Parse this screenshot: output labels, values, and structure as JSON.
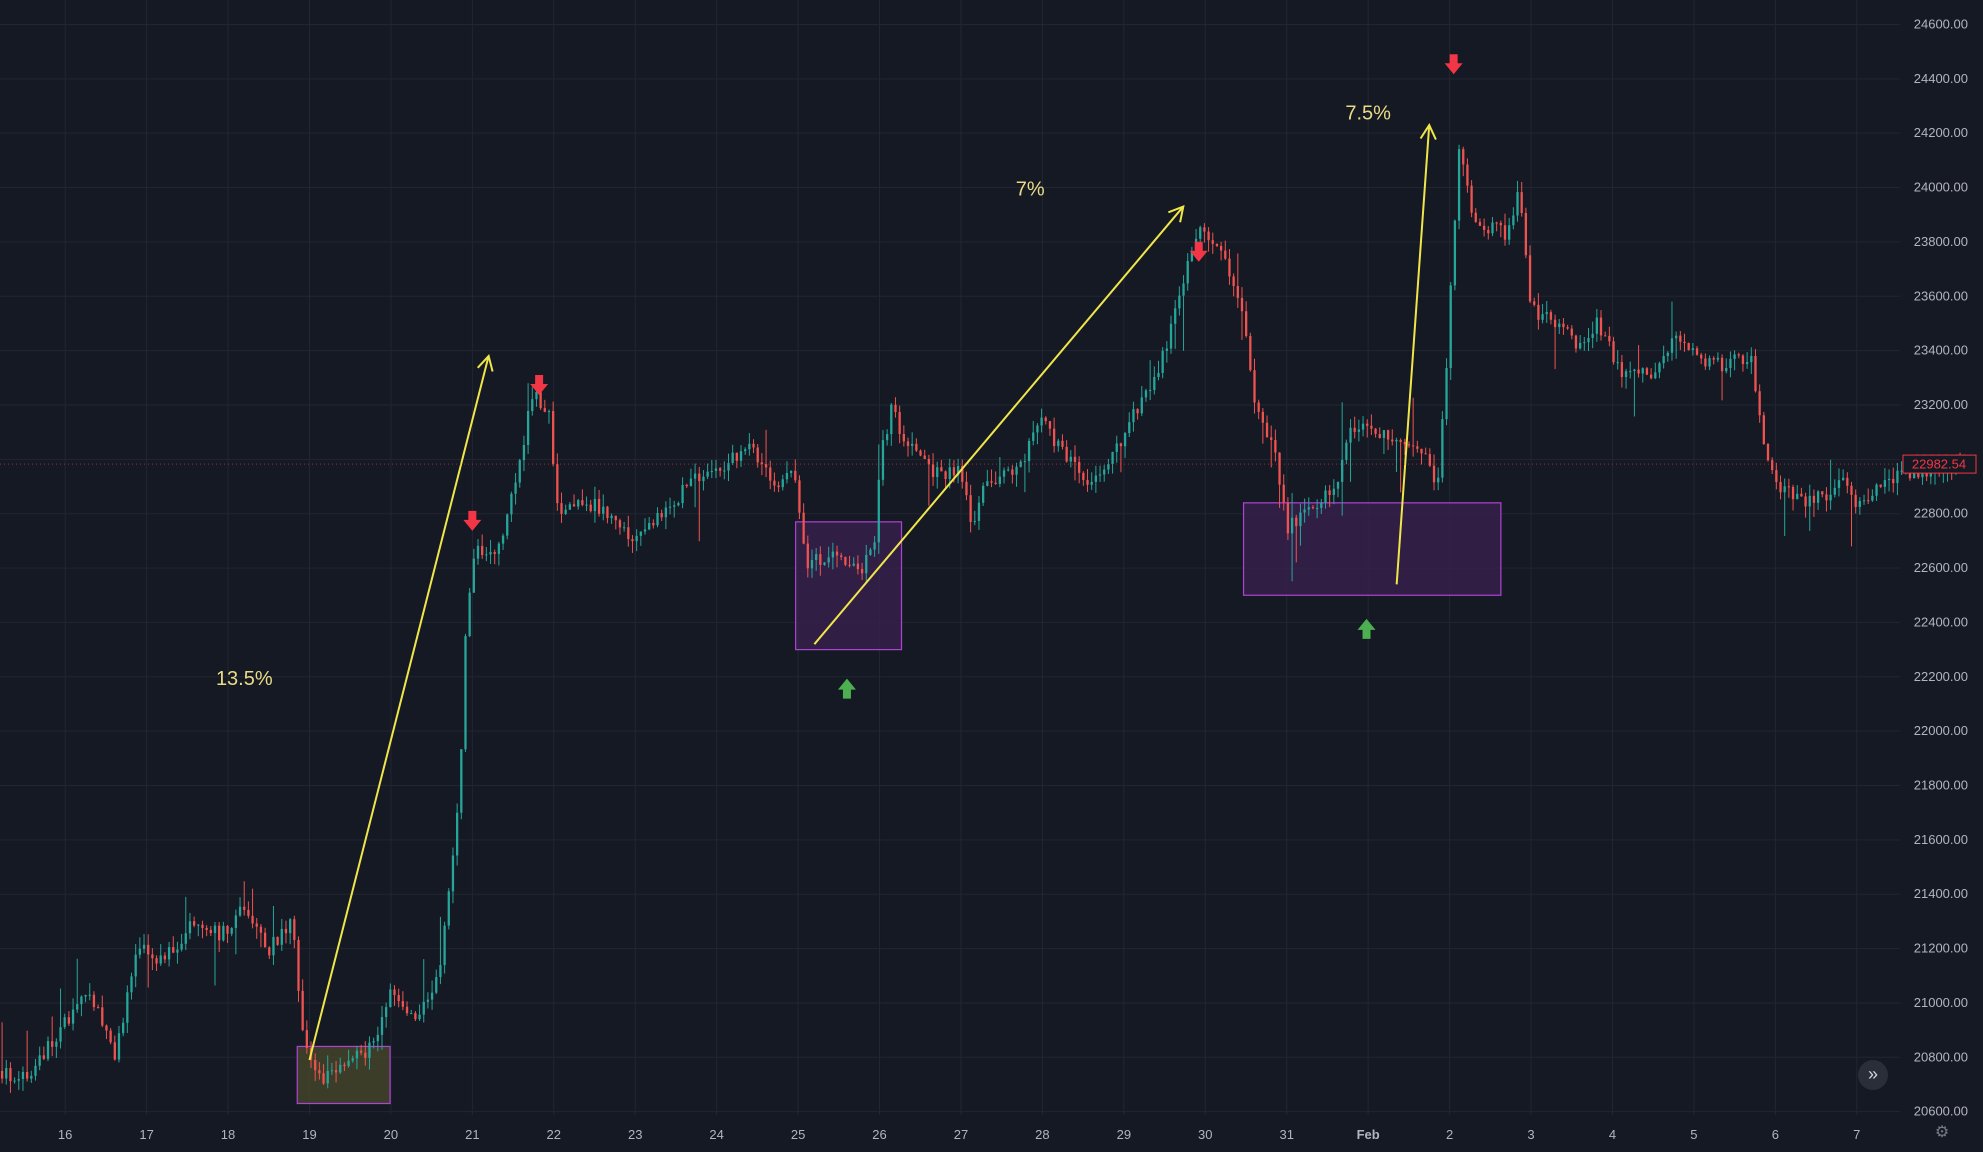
{
  "chart_data": {
    "type": "candlestick",
    "y_axis": {
      "ticks": [
        20600,
        20800,
        21000,
        21200,
        21400,
        21600,
        21800,
        22000,
        22200,
        22400,
        22600,
        22800,
        23000,
        23200,
        23400,
        23600,
        23800,
        24000,
        24200,
        24400,
        24600
      ],
      "ylim": [
        20470,
        24690
      ]
    },
    "x_axis": {
      "ticks": [
        {
          "label": "16",
          "day": 16
        },
        {
          "label": "17",
          "day": 17
        },
        {
          "label": "18",
          "day": 18
        },
        {
          "label": "19",
          "day": 19
        },
        {
          "label": "20",
          "day": 20
        },
        {
          "label": "21",
          "day": 21
        },
        {
          "label": "22",
          "day": 22
        },
        {
          "label": "23",
          "day": 23
        },
        {
          "label": "24",
          "day": 24
        },
        {
          "label": "25",
          "day": 25
        },
        {
          "label": "26",
          "day": 26
        },
        {
          "label": "27",
          "day": 27
        },
        {
          "label": "28",
          "day": 28
        },
        {
          "label": "29",
          "day": 29
        },
        {
          "label": "30",
          "day": 30
        },
        {
          "label": "31",
          "day": 31
        },
        {
          "label": "Feb",
          "day": 32,
          "bold": true
        },
        {
          "label": "2",
          "day": 33
        },
        {
          "label": "3",
          "day": 34
        },
        {
          "label": "4",
          "day": 35
        },
        {
          "label": "5",
          "day": 36
        },
        {
          "label": "6",
          "day": 37
        },
        {
          "label": "7",
          "day": 38
        }
      ],
      "xlim": [
        15.2,
        39.55
      ]
    },
    "price_keypoints": [
      [
        15.2,
        20750
      ],
      [
        15.5,
        20720
      ],
      [
        15.9,
        20880
      ],
      [
        16.3,
        21050
      ],
      [
        16.6,
        20800
      ],
      [
        16.9,
        21200
      ],
      [
        17.2,
        21150
      ],
      [
        17.6,
        21300
      ],
      [
        17.9,
        21250
      ],
      [
        18.2,
        21350
      ],
      [
        18.5,
        21200
      ],
      [
        18.8,
        21300
      ],
      [
        18.9,
        20900
      ],
      [
        19.1,
        20720
      ],
      [
        19.5,
        20780
      ],
      [
        19.8,
        20850
      ],
      [
        20.0,
        21050
      ],
      [
        20.3,
        20950
      ],
      [
        20.6,
        21100
      ],
      [
        20.85,
        21800
      ],
      [
        20.92,
        22400
      ],
      [
        21.05,
        22680
      ],
      [
        21.3,
        22650
      ],
      [
        21.55,
        22950
      ],
      [
        21.75,
        23250
      ],
      [
        21.95,
        23150
      ],
      [
        22.05,
        22800
      ],
      [
        22.35,
        22850
      ],
      [
        22.7,
        22800
      ],
      [
        22.95,
        22720
      ],
      [
        23.3,
        22780
      ],
      [
        23.7,
        22920
      ],
      [
        24.0,
        22950
      ],
      [
        24.4,
        23050
      ],
      [
        24.7,
        22900
      ],
      [
        24.95,
        22950
      ],
      [
        25.1,
        22620
      ],
      [
        25.4,
        22650
      ],
      [
        25.8,
        22600
      ],
      [
        25.95,
        22700
      ],
      [
        26.0,
        23000
      ],
      [
        26.15,
        23180
      ],
      [
        26.35,
        23050
      ],
      [
        26.7,
        22950
      ],
      [
        27.0,
        22950
      ],
      [
        27.15,
        22720
      ],
      [
        27.3,
        22920
      ],
      [
        27.7,
        22950
      ],
      [
        27.95,
        23150
      ],
      [
        28.2,
        23050
      ],
      [
        28.5,
        22920
      ],
      [
        28.8,
        22980
      ],
      [
        29.1,
        23150
      ],
      [
        29.4,
        23300
      ],
      [
        29.7,
        23600
      ],
      [
        29.9,
        23850
      ],
      [
        30.2,
        23750
      ],
      [
        30.45,
        23550
      ],
      [
        30.6,
        23200
      ],
      [
        30.85,
        23050
      ],
      [
        31.0,
        22750
      ],
      [
        31.3,
        22820
      ],
      [
        31.6,
        22900
      ],
      [
        31.8,
        23120
      ],
      [
        32.1,
        23100
      ],
      [
        32.4,
        23050
      ],
      [
        32.7,
        23000
      ],
      [
        32.85,
        22920
      ],
      [
        32.95,
        23300
      ],
      [
        33.05,
        23800
      ],
      [
        33.12,
        24150
      ],
      [
        33.3,
        23880
      ],
      [
        33.7,
        23830
      ],
      [
        33.85,
        24000
      ],
      [
        34.0,
        23550
      ],
      [
        34.3,
        23500
      ],
      [
        34.6,
        23420
      ],
      [
        34.8,
        23500
      ],
      [
        35.1,
        23330
      ],
      [
        35.5,
        23320
      ],
      [
        35.75,
        23450
      ],
      [
        36.0,
        23380
      ],
      [
        36.35,
        23350
      ],
      [
        36.7,
        23380
      ],
      [
        36.8,
        23150
      ],
      [
        37.0,
        22920
      ],
      [
        37.3,
        22850
      ],
      [
        37.7,
        22860
      ],
      [
        37.85,
        22950
      ],
      [
        38.0,
        22820
      ],
      [
        38.3,
        22920
      ],
      [
        38.6,
        22950
      ],
      [
        39.0,
        22970
      ],
      [
        39.45,
        22982.54
      ]
    ],
    "last_price": {
      "value": 22982.54,
      "label": "22982.54"
    },
    "zones": [
      {
        "x0": 18.85,
        "x1": 19.99,
        "y0": 20630,
        "y1": 20840,
        "fill": "#4a4a2a",
        "stroke": "#b043d6"
      },
      {
        "x0": 24.97,
        "x1": 26.27,
        "y0": 22300,
        "y1": 22770,
        "fill": "#3a2050",
        "stroke": "#b043d6"
      },
      {
        "x0": 30.47,
        "x1": 33.63,
        "y0": 22500,
        "y1": 22840,
        "fill": "#3a2050",
        "stroke": "#b043d6"
      }
    ],
    "trend_arrows": [
      {
        "x0": 19.0,
        "y0": 20790,
        "x1": 21.2,
        "y1": 23380,
        "color": "#f0e64a"
      },
      {
        "x0": 25.2,
        "y0": 22320,
        "x1": 29.73,
        "y1": 23930,
        "color": "#f0e64a"
      },
      {
        "x0": 32.35,
        "y0": 22540,
        "x1": 32.75,
        "y1": 24230,
        "color": "#f0e64a"
      }
    ],
    "annotations": [
      {
        "text": "13.5%",
        "x": 18.2,
        "y": 22170
      },
      {
        "text": "7%",
        "x": 27.85,
        "y": 23970
      },
      {
        "text": "7.5%",
        "x": 32.0,
        "y": 24250
      }
    ],
    "markers": [
      {
        "direction": "down",
        "x": 21.0,
        "y": 22770,
        "color": "#f23645"
      },
      {
        "direction": "down",
        "x": 21.82,
        "y": 23270,
        "color": "#f23645"
      },
      {
        "direction": "down",
        "x": 29.92,
        "y": 23760,
        "color": "#f23645"
      },
      {
        "direction": "down",
        "x": 33.05,
        "y": 24450,
        "color": "#f23645"
      },
      {
        "direction": "up",
        "x": 25.6,
        "y": 22160,
        "color": "#4caf50"
      },
      {
        "direction": "up",
        "x": 31.98,
        "y": 22380,
        "color": "#4caf50"
      }
    ],
    "colors": {
      "background": "#151924",
      "grid": "#222631",
      "up": "#26a69a",
      "down": "#ef5350",
      "axis_text": "#b2b5be",
      "last_price": "#f23645"
    },
    "grid": true
  },
  "controls": {
    "scroll_icon": "double-chevron-right-icon",
    "scroll_glyph": "»",
    "settings_icon": "gear-icon",
    "settings_glyph": "⚙"
  }
}
